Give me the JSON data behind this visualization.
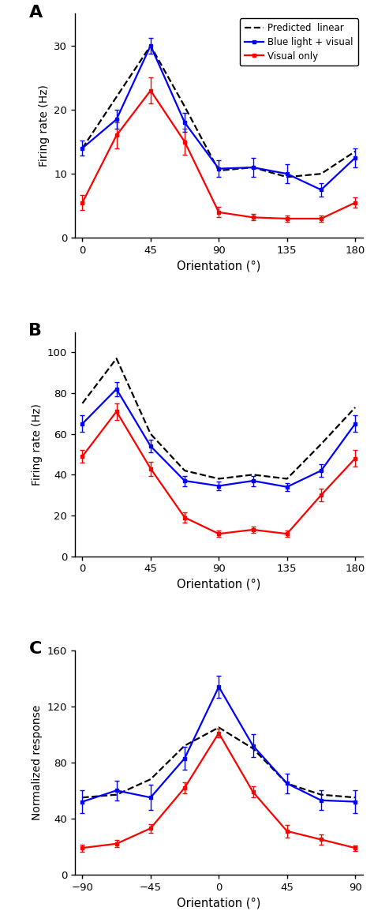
{
  "panel_A": {
    "x": [
      0,
      22.5,
      45,
      67.5,
      90,
      112.5,
      135,
      157.5,
      180
    ],
    "blue_y": [
      14,
      18.5,
      30,
      18,
      10.8,
      11,
      10,
      7.5,
      12.5
    ],
    "blue_err": [
      1.2,
      1.5,
      1.2,
      1.5,
      1.3,
      1.5,
      1.5,
      1.0,
      1.5
    ],
    "red_y": [
      5.5,
      16,
      23,
      15,
      4.0,
      3.2,
      3.0,
      3.0,
      5.5
    ],
    "red_err": [
      1.2,
      2.0,
      2.0,
      2.0,
      0.8,
      0.5,
      0.5,
      0.5,
      0.8
    ],
    "black_y": [
      14,
      22,
      30,
      20.5,
      10.5,
      11.0,
      9.5,
      10.0,
      13.5
    ],
    "ylim": [
      0,
      35
    ],
    "yticks": [
      0,
      10,
      20,
      30
    ],
    "ylabel": "Firing rate (Hz)",
    "xlabel": "Orientation (°)",
    "xticks": [
      0,
      45,
      90,
      135,
      180
    ],
    "xlim": [
      -5,
      185
    ]
  },
  "panel_B": {
    "x": [
      0,
      22.5,
      45,
      67.5,
      90,
      112.5,
      135,
      157.5,
      180
    ],
    "blue_y": [
      65,
      82,
      54,
      37,
      34.5,
      37,
      34,
      42,
      65
    ],
    "blue_err": [
      4.0,
      3.5,
      3.0,
      2.5,
      2.0,
      2.5,
      2.0,
      3.0,
      4.0
    ],
    "red_y": [
      49,
      71,
      43,
      19,
      11,
      13,
      11,
      30,
      48
    ],
    "red_err": [
      3.0,
      4.0,
      3.5,
      2.5,
      1.5,
      1.5,
      1.5,
      3.0,
      4.0
    ],
    "black_y": [
      75,
      97,
      60,
      42,
      38,
      40,
      38,
      55,
      73
    ],
    "ylim": [
      0,
      110
    ],
    "yticks": [
      0,
      20,
      40,
      60,
      80,
      100
    ],
    "ylabel": "Firing rate (Hz)",
    "xlabel": "Orientation (°)",
    "xticks": [
      0,
      45,
      90,
      135,
      180
    ],
    "xlim": [
      -5,
      185
    ]
  },
  "panel_C": {
    "x": [
      -90,
      -67.5,
      -45,
      -22.5,
      0,
      22.5,
      45,
      67.5,
      90
    ],
    "blue_y": [
      52,
      60,
      55,
      83,
      134,
      92,
      65,
      53,
      52
    ],
    "blue_err": [
      8.0,
      7.0,
      9.0,
      8.0,
      8.0,
      8.0,
      7.0,
      7.0,
      8.0
    ],
    "red_y": [
      19,
      22,
      33,
      62,
      101,
      59,
      31,
      25,
      19
    ],
    "red_err": [
      2.5,
      2.5,
      3.0,
      4.0,
      3.0,
      4.0,
      4.5,
      3.5,
      2.0
    ],
    "black_y": [
      55,
      57,
      68,
      92,
      105,
      90,
      65,
      57,
      55
    ],
    "ylim": [
      0,
      160
    ],
    "yticks": [
      0,
      40,
      80,
      120,
      160
    ],
    "ylabel": "Normalized response",
    "xlabel": "Orientation (°)",
    "xticks": [
      -90,
      -45,
      0,
      45,
      90
    ],
    "xlim": [
      -95,
      95
    ]
  },
  "legend_labels": [
    "Predicted  linear",
    "Blue light + visual",
    "Visual only"
  ],
  "blue_color": "#0000FF",
  "red_color": "#FF0000",
  "black_color": "#000000",
  "panel_labels": [
    "A",
    "B",
    "C"
  ]
}
